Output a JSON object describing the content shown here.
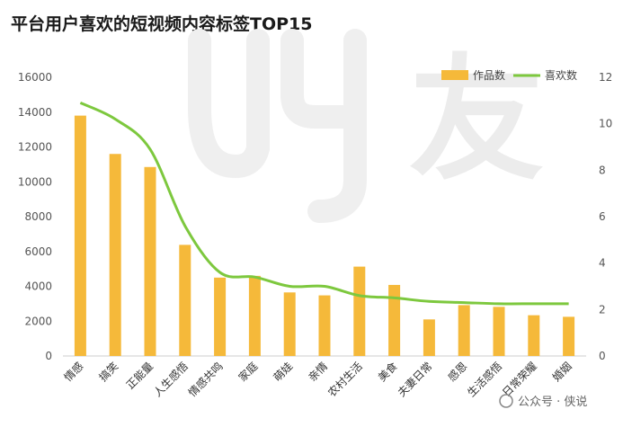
{
  "chart_data": {
    "type": "bar",
    "title": "平台用户喜欢的短视频内容标签TOP15",
    "categories": [
      "情感",
      "搞笑",
      "正能量",
      "人生感悟",
      "情感共鸣",
      "家庭",
      "萌娃",
      "亲情",
      "农村生活",
      "美食",
      "夫妻日常",
      "感恩",
      "生活感悟",
      "日常荣耀",
      "婚姻"
    ],
    "series": [
      {
        "name": "作品数",
        "axis": "left",
        "mark": "bar",
        "color": "#F5B93A",
        "values": [
          13800,
          11600,
          10850,
          6380,
          4500,
          4600,
          3650,
          3480,
          5130,
          4080,
          2100,
          2920,
          2820,
          2340,
          2250
        ]
      },
      {
        "name": "喜欢数",
        "axis": "right",
        "mark": "line",
        "color": "#7DC83E",
        "values": [
          10.9,
          10.2,
          8.9,
          5.6,
          3.6,
          3.4,
          3.0,
          3.0,
          2.6,
          2.5,
          2.35,
          2.3,
          2.25,
          2.25,
          2.25
        ]
      }
    ],
    "ylim": [
      0,
      16000
    ],
    "yticks": [
      0,
      2000,
      4000,
      6000,
      8000,
      10000,
      12000,
      14000,
      16000
    ],
    "y2lim": [
      0,
      12
    ],
    "y2ticks": [
      0,
      2,
      4,
      6,
      8,
      10,
      12
    ],
    "grid": false,
    "legend": "top-right",
    "xlabel": "",
    "ylabel": ""
  },
  "watermark": {
    "logo_text": "友",
    "credit": "公众号 · 侠说"
  }
}
